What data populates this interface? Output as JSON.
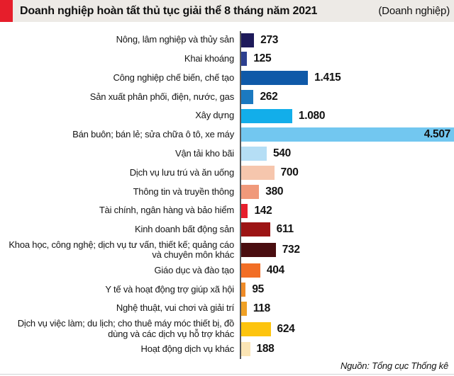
{
  "header": {
    "title": "Doanh nghiệp hoàn tất thủ tục giải thể 8 tháng năm 2021",
    "unit_label": "(Doanh nghiệp)",
    "accent_color": "#e61e2b",
    "background": "#edeae6"
  },
  "footer": {
    "source": "Nguồn: Tổng cục Thống kê"
  },
  "chart_data": {
    "type": "bar",
    "orientation": "horizontal",
    "title": "Doanh nghiệp hoàn tất thủ tục giải thể 8 tháng năm 2021",
    "unit": "Doanh nghiệp",
    "xlabel": "",
    "ylabel": "",
    "xlim": [
      0,
      4507
    ],
    "grid": false,
    "legend": "none",
    "value_labels_position": "outside-right, inside for max bar",
    "categories": [
      "Nông, lâm nghiệp và thủy sản",
      "Khai khoáng",
      "Công nghiệp chế biến, chế tạo",
      "Sản xuất phân phối, điện, nước, gas",
      "Xây dựng",
      "Bán buôn; bán lẻ; sửa chữa ô tô, xe máy",
      "Vận tải kho bãi",
      "Dịch vụ lưu trú và ăn uống",
      "Thông tin và truyền thông",
      "Tài chính, ngân hàng và bảo hiểm",
      "Kinh doanh bất động sản",
      "Khoa học, công nghệ; dịch vụ tư vấn, thiết kế; quảng cáo và chuyên môn khác",
      "Giáo dục và đào tạo",
      "Y tế và hoạt động trợ giúp xã hội",
      "Nghệ thuật, vui chơi và giải trí",
      "Dịch vụ việc làm; du lịch; cho thuê máy móc thiết bị, đồ dùng và các dịch vụ hỗ trợ khác",
      "Hoạt động dịch vụ khác"
    ],
    "values": [
      273,
      125,
      1415,
      262,
      1080,
      4507,
      540,
      700,
      380,
      142,
      611,
      732,
      404,
      95,
      118,
      624,
      188
    ],
    "value_labels": [
      "273",
      "125",
      "1.415",
      "262",
      "1.080",
      "4.507",
      "540",
      "700",
      "380",
      "142",
      "611",
      "732",
      "404",
      "95",
      "118",
      "624",
      "188"
    ],
    "bar_colors": [
      "#1e1a5a",
      "#2c3f8f",
      "#0f59a8",
      "#1b79c0",
      "#12aeea",
      "#72c7f0",
      "#b5def5",
      "#f6c6ad",
      "#f0997a",
      "#e61e2b",
      "#9c1414",
      "#4a0e10",
      "#f26e26",
      "#ef8b28",
      "#f0a125",
      "#fdc40e",
      "#fbe5b5"
    ],
    "axis_line_color": "#58595b"
  }
}
